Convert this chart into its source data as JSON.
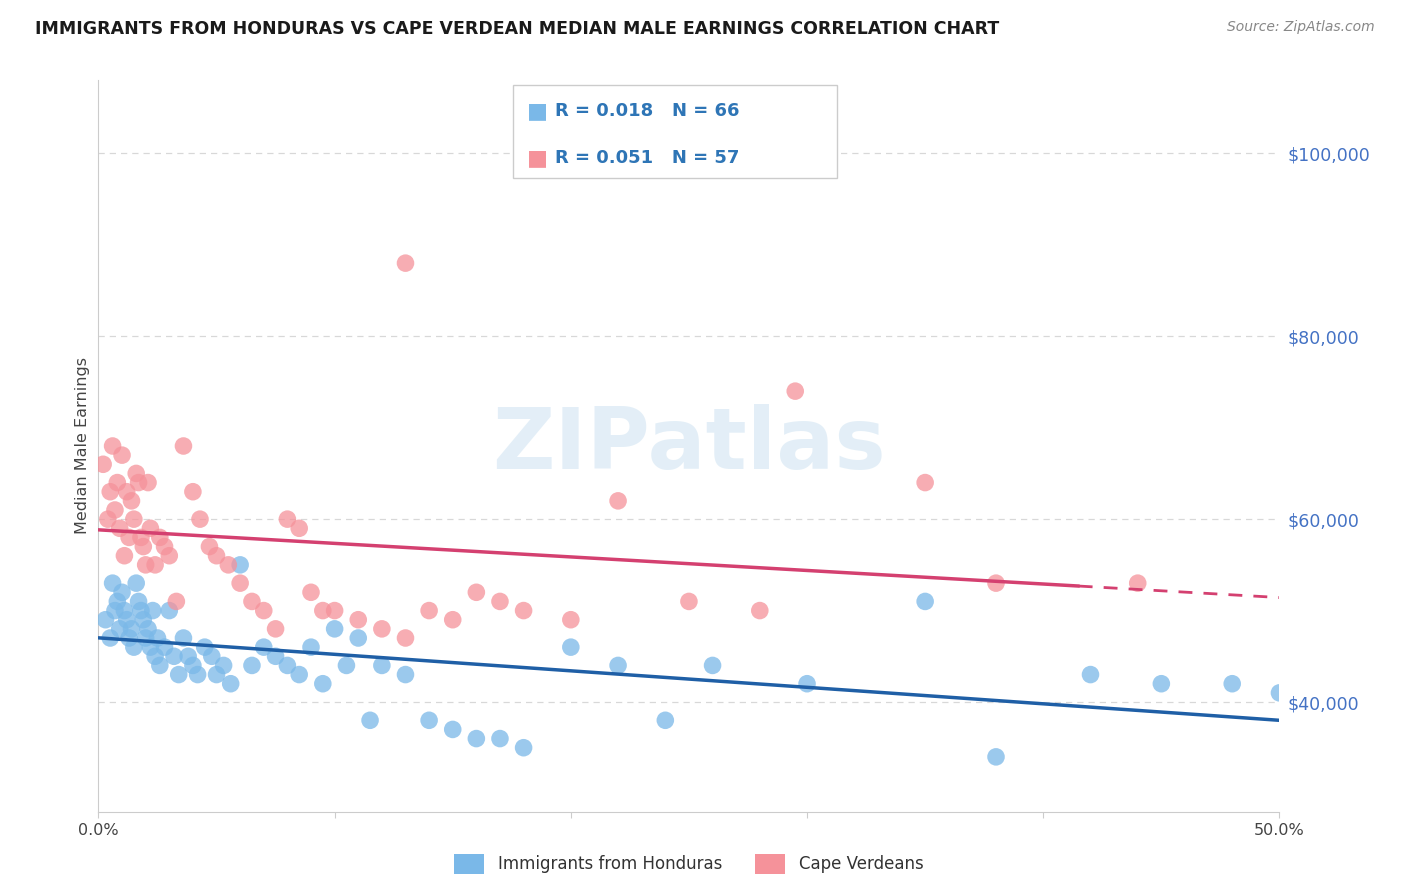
{
  "title": "IMMIGRANTS FROM HONDURAS VS CAPE VERDEAN MEDIAN MALE EARNINGS CORRELATION CHART",
  "source": "Source: ZipAtlas.com",
  "ylabel": "Median Male Earnings",
  "xlim": [
    0.0,
    0.5
  ],
  "ylim": [
    28000,
    108000
  ],
  "xtick_positions": [
    0.0,
    0.1,
    0.2,
    0.3,
    0.4,
    0.5
  ],
  "xtick_labels_visible": [
    "0.0%",
    "",
    "",
    "",
    "",
    "50.0%"
  ],
  "yticks_right": [
    40000,
    60000,
    80000,
    100000
  ],
  "ytick_labels_right": [
    "$40,000",
    "$60,000",
    "$80,000",
    "$100,000"
  ],
  "right_axis_color": "#4472c4",
  "legend_r1_text": "R = 0.018   N = 66",
  "legend_r2_text": "R = 0.051   N = 57",
  "watermark": "ZIPatlas",
  "legend_label1": "Immigrants from Honduras",
  "legend_label2": "Cape Verdeans",
  "blue_scatter_color": "#7ab8e8",
  "pink_scatter_color": "#f5929a",
  "blue_line_color": "#1f5fa6",
  "pink_line_color": "#d44070",
  "legend_text_color": "#2e75b6",
  "title_color": "#1a1a1a",
  "source_color": "#888888",
  "grid_color": "#d8d8d8",
  "axis_color": "#cccccc",
  "honduras_x": [
    0.003,
    0.005,
    0.006,
    0.007,
    0.008,
    0.009,
    0.01,
    0.011,
    0.012,
    0.013,
    0.014,
    0.015,
    0.016,
    0.017,
    0.018,
    0.019,
    0.02,
    0.021,
    0.022,
    0.023,
    0.024,
    0.025,
    0.026,
    0.028,
    0.03,
    0.032,
    0.034,
    0.036,
    0.038,
    0.04,
    0.042,
    0.045,
    0.048,
    0.05,
    0.053,
    0.056,
    0.06,
    0.065,
    0.07,
    0.075,
    0.08,
    0.085,
    0.09,
    0.095,
    0.1,
    0.105,
    0.11,
    0.115,
    0.12,
    0.13,
    0.14,
    0.15,
    0.16,
    0.17,
    0.18,
    0.2,
    0.22,
    0.24,
    0.26,
    0.3,
    0.35,
    0.38,
    0.42,
    0.45,
    0.48,
    0.5
  ],
  "honduras_y": [
    49000,
    47000,
    53000,
    50000,
    51000,
    48000,
    52000,
    50000,
    49000,
    47000,
    48000,
    46000,
    53000,
    51000,
    50000,
    49000,
    47000,
    48000,
    46000,
    50000,
    45000,
    47000,
    44000,
    46000,
    50000,
    45000,
    43000,
    47000,
    45000,
    44000,
    43000,
    46000,
    45000,
    43000,
    44000,
    42000,
    55000,
    44000,
    46000,
    45000,
    44000,
    43000,
    46000,
    42000,
    48000,
    44000,
    47000,
    38000,
    44000,
    43000,
    38000,
    37000,
    36000,
    36000,
    35000,
    46000,
    44000,
    38000,
    44000,
    42000,
    51000,
    34000,
    43000,
    42000,
    42000,
    41000
  ],
  "capeverde_x": [
    0.002,
    0.004,
    0.005,
    0.006,
    0.007,
    0.008,
    0.009,
    0.01,
    0.011,
    0.012,
    0.013,
    0.014,
    0.015,
    0.016,
    0.017,
    0.018,
    0.019,
    0.02,
    0.021,
    0.022,
    0.024,
    0.026,
    0.028,
    0.03,
    0.033,
    0.036,
    0.04,
    0.043,
    0.047,
    0.05,
    0.055,
    0.06,
    0.065,
    0.07,
    0.075,
    0.08,
    0.085,
    0.09,
    0.095,
    0.1,
    0.11,
    0.12,
    0.13,
    0.14,
    0.15,
    0.16,
    0.17,
    0.18,
    0.2,
    0.22,
    0.25,
    0.28,
    0.13,
    0.295,
    0.35,
    0.38,
    0.44
  ],
  "capeverde_y": [
    66000,
    60000,
    63000,
    68000,
    61000,
    64000,
    59000,
    67000,
    56000,
    63000,
    58000,
    62000,
    60000,
    65000,
    64000,
    58000,
    57000,
    55000,
    64000,
    59000,
    55000,
    58000,
    57000,
    56000,
    51000,
    68000,
    63000,
    60000,
    57000,
    56000,
    55000,
    53000,
    51000,
    50000,
    48000,
    60000,
    59000,
    52000,
    50000,
    50000,
    49000,
    48000,
    47000,
    50000,
    49000,
    52000,
    51000,
    50000,
    49000,
    62000,
    51000,
    50000,
    88000,
    74000,
    64000,
    53000,
    53000
  ]
}
